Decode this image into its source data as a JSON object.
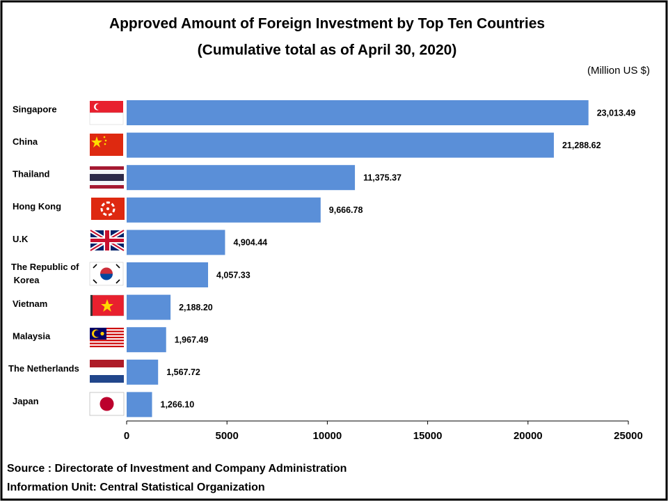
{
  "chart_data": {
    "type": "bar",
    "orientation": "horizontal",
    "title": "Approved Amount of Foreign Investment by Top Ten Countries",
    "subtitle": "(Cumulative total as of April 30, 2020)",
    "unit_label": "(Million US $)",
    "categories": [
      "Singapore",
      "China",
      "Thailand",
      "Hong Kong",
      "U.K",
      "The Republic of Korea",
      "Vietnam",
      "Malaysia",
      "The Netherlands",
      "Japan"
    ],
    "values": [
      23013.49,
      21288.62,
      11375.37,
      9666.78,
      4904.44,
      4057.33,
      2188.2,
      1967.49,
      1567.72,
      1266.1
    ],
    "value_labels": [
      "23,013.49",
      "21,288.62",
      "11,375.37",
      "9,666.78",
      "4,904.44",
      "4,057.33",
      "2,188.20",
      "1,967.49",
      "1,567.72",
      "1,266.10"
    ],
    "color": "#5a8fd8",
    "xlim": [
      0,
      25000
    ],
    "xticks": [
      0,
      5000,
      10000,
      15000,
      20000,
      25000
    ],
    "grid": false,
    "source": "Source : Directorate of Investment and Company Administration",
    "info": "Information Unit:  Central Statistical Organization"
  }
}
